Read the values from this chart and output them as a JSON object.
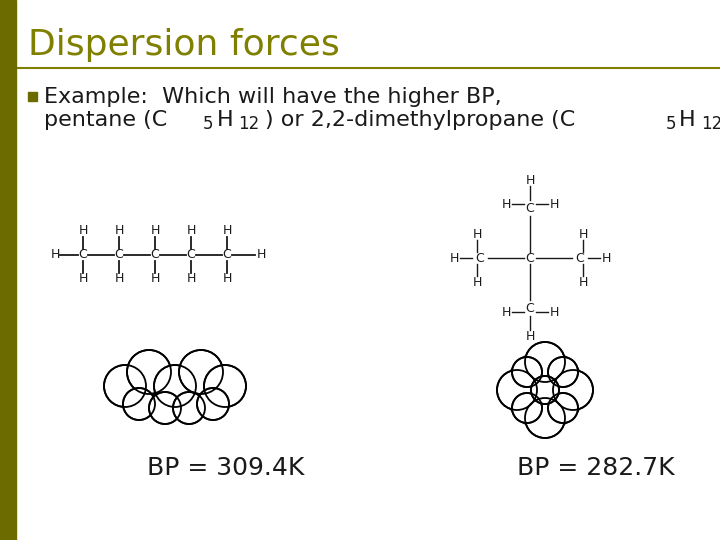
{
  "title": "Dispersion forces",
  "title_color": "#808000",
  "title_fontsize": 26,
  "bg_color": "#ffffff",
  "left_bar_color": "#6b6b00",
  "bullet_text_line1": "Example:  Which will have the higher BP,",
  "bp_left": "BP = 309.4K",
  "bp_right": "BP = 282.7K",
  "text_color": "#1a1a1a",
  "body_fontsize": 16,
  "bp_fontsize": 18
}
